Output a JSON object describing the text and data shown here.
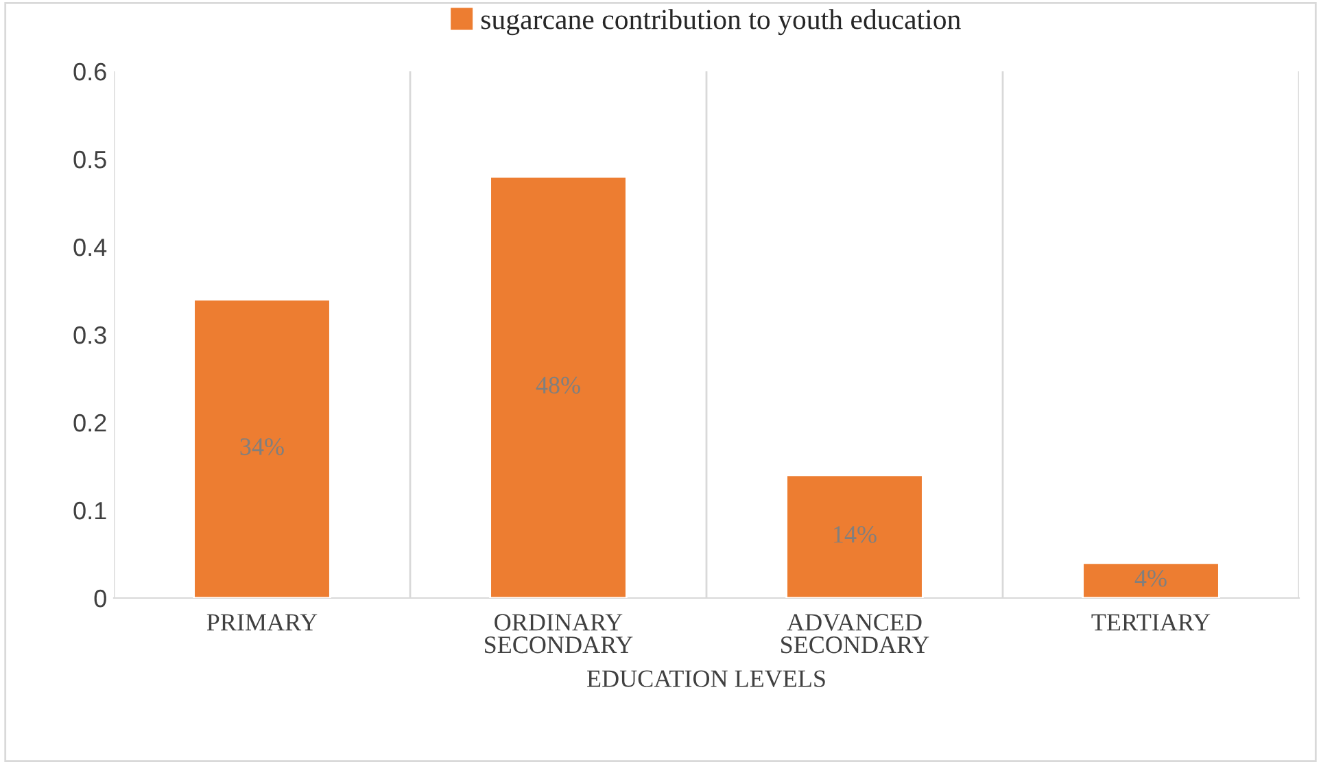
{
  "chart_data": {
    "type": "bar",
    "xlabel": "EDUCATION LEVELS",
    "categories": [
      "PRIMARY",
      "ORDINARY\nSECONDARY",
      "ADVANCED\nSECONDARY",
      "TERTIARY"
    ],
    "series": [
      {
        "name": "sugarcane contribution to youth education",
        "color": "#ed7d31",
        "values": [
          0.34,
          0.48,
          0.14,
          0.04
        ],
        "value_labels": [
          "34%",
          "48%",
          "14%",
          "4%"
        ]
      }
    ],
    "ylim": [
      0,
      0.6
    ],
    "yticks": [
      0,
      0.1,
      0.2,
      0.3,
      0.4,
      0.5,
      0.6
    ],
    "grid": "x",
    "legend": "top"
  }
}
